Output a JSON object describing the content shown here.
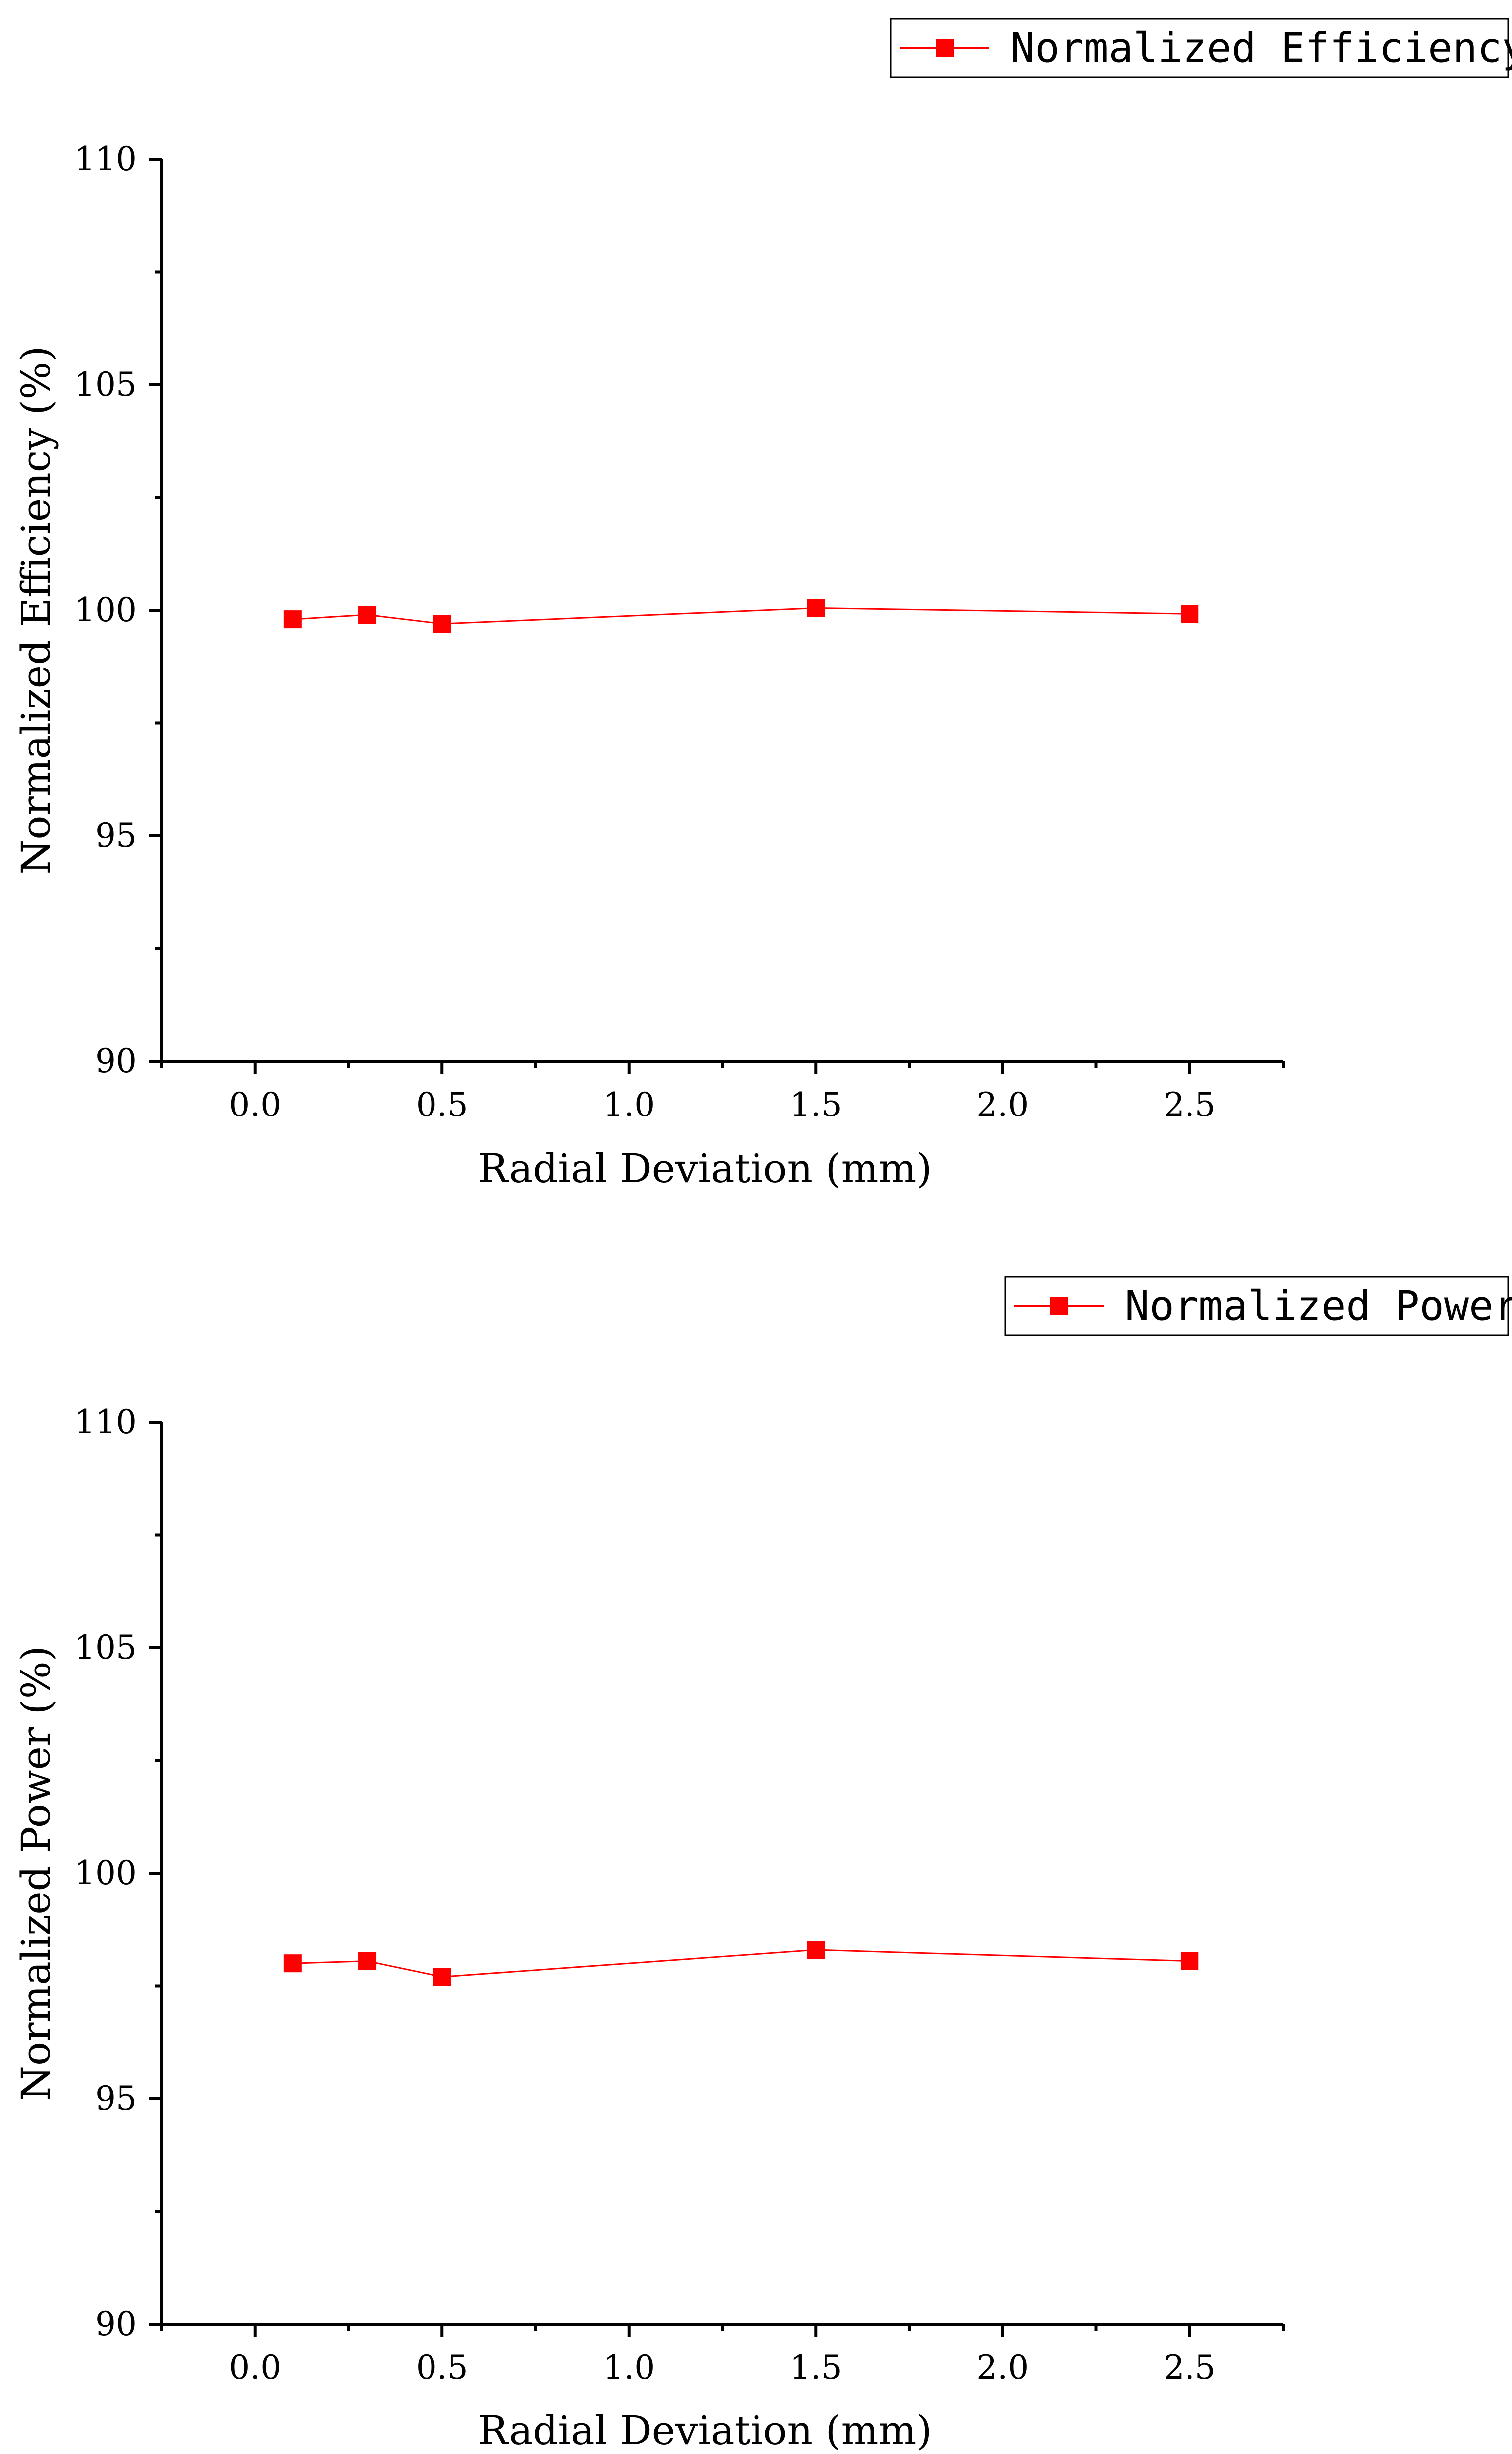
{
  "colors": {
    "series": "#ff0000",
    "axis": "#000000",
    "background": "#ffffff"
  },
  "chart_data": [
    {
      "type": "line",
      "title": "",
      "xlabel": "Radial Deviation (mm)",
      "ylabel": "Normalized Efficiency (%)",
      "xlim": [
        -0.25,
        2.75
      ],
      "ylim": [
        90,
        110
      ],
      "x_ticks": [
        "0.0",
        "0.5",
        "1.0",
        "1.5",
        "2.0",
        "2.5"
      ],
      "y_ticks": [
        "90",
        "95",
        "100",
        "105",
        "110"
      ],
      "legend_position": "top-right",
      "grid": false,
      "marker": "square",
      "series": [
        {
          "name": "Normalized Efficiency",
          "color": "#ff0000",
          "x": [
            0.1,
            0.3,
            0.5,
            1.5,
            2.5
          ],
          "y": [
            99.8,
            99.9,
            99.7,
            100.05,
            99.92
          ]
        }
      ]
    },
    {
      "type": "line",
      "title": "",
      "xlabel": "Radial Deviation (mm)",
      "ylabel": "Normalized Power (%)",
      "xlim": [
        -0.25,
        2.75
      ],
      "ylim": [
        90,
        110
      ],
      "x_ticks": [
        "0.0",
        "0.5",
        "1.0",
        "1.5",
        "2.0",
        "2.5"
      ],
      "y_ticks": [
        "90",
        "95",
        "100",
        "105",
        "110"
      ],
      "legend_position": "top-right",
      "grid": false,
      "marker": "square",
      "series": [
        {
          "name": "Normalized Power",
          "color": "#ff0000",
          "x": [
            0.1,
            0.3,
            0.5,
            1.5,
            2.5
          ],
          "y": [
            98.0,
            98.05,
            97.7,
            98.3,
            98.05
          ]
        }
      ]
    }
  ]
}
